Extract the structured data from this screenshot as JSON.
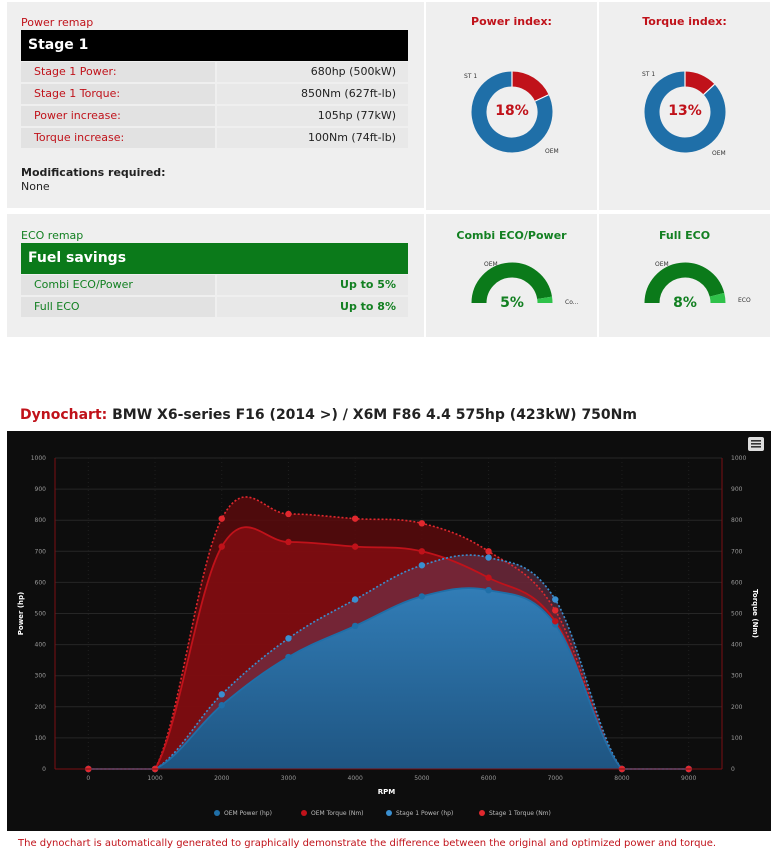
{
  "power_remap": {
    "section_title": "Power remap",
    "stage_title": "Stage 1",
    "rows": [
      {
        "label": "Stage 1 Power:",
        "value": "680hp (500kW)"
      },
      {
        "label": "Stage 1 Torque:",
        "value": "850Nm (627ft-lb)"
      },
      {
        "label": "Power increase:",
        "value": "105hp (77kW)"
      },
      {
        "label": "Torque increase:",
        "value": "100Nm (74ft-lb)"
      }
    ],
    "modifications_label": "Modifications required:",
    "modifications_value": "None"
  },
  "power_index": {
    "title": "Power index:",
    "percent_text": "18%",
    "percent": 18,
    "label_st": "ST 1",
    "label_oem": "OEM"
  },
  "torque_index": {
    "title": "Torque index:",
    "percent_text": "13%",
    "percent": 13,
    "label_st": "ST 1",
    "label_oem": "OEM"
  },
  "eco_remap": {
    "section_title": "ECO remap",
    "bar_title": "Fuel savings",
    "rows": [
      {
        "label": "Combi ECO/Power",
        "value": "Up to 5%"
      },
      {
        "label": "Full ECO",
        "value": "Up to 8%"
      }
    ]
  },
  "combi_eco": {
    "title": "Combi ECO/Power",
    "percent_text": "5%",
    "percent": 5,
    "label_oem": "OEM",
    "label_eco": "Co..."
  },
  "full_eco": {
    "title": "Full ECO",
    "percent_text": "8%",
    "percent": 8,
    "label_oem": "OEM",
    "label_eco": "ECO"
  },
  "dyno": {
    "title_lead": "Dynochart:",
    "title_rest": " BMW X6-series F16 (2014 >) / X6M F86 4.4 575hp (423kW) 750Nm",
    "footer": "The dynochart is automatically generated to graphically demonstrate the difference between the original and optimized power and torque."
  },
  "colors": {
    "red": "#c0121a",
    "blue": "#1f6fa8",
    "green": "#138022"
  },
  "chart_data": {
    "type": "area",
    "xlabel": "RPM",
    "ylabel": "Power (hp)",
    "y2label": "Torque (Nm)",
    "xlim": [
      -500,
      9500
    ],
    "ylim": [
      0,
      1000
    ],
    "x_ticks": [
      0,
      1000,
      2000,
      3000,
      4000,
      5000,
      6000,
      7000,
      8000,
      9000
    ],
    "y_ticks": [
      0,
      100,
      200,
      300,
      400,
      500,
      600,
      700,
      800,
      900,
      1000
    ],
    "grid": true,
    "legend_position": "bottom",
    "series": [
      {
        "name": "OEM Power (hp)",
        "axis": "left",
        "color": "#1f6fa8",
        "x": [
          0,
          1000,
          2000,
          3000,
          4000,
          5000,
          6000,
          7000,
          8000,
          9000
        ],
        "y": [
          0,
          0,
          205,
          360,
          460,
          555,
          575,
          465,
          0,
          0
        ]
      },
      {
        "name": "OEM Torque (Nm)",
        "axis": "right",
        "color": "#c0121a",
        "x": [
          0,
          1000,
          2000,
          3000,
          4000,
          5000,
          6000,
          7000,
          8000,
          9000
        ],
        "y": [
          0,
          0,
          715,
          730,
          715,
          700,
          615,
          475,
          0,
          0
        ]
      },
      {
        "name": "Stage 1 Power (hp)",
        "axis": "left",
        "color": "#3a8fd0",
        "x": [
          0,
          1000,
          2000,
          3000,
          4000,
          5000,
          6000,
          7000,
          8000,
          9000
        ],
        "y": [
          0,
          0,
          240,
          420,
          545,
          655,
          680,
          545,
          0,
          0
        ]
      },
      {
        "name": "Stage 1 Torque (Nm)",
        "axis": "right",
        "color": "#e0282e",
        "x": [
          0,
          1000,
          2000,
          3000,
          4000,
          5000,
          6000,
          7000,
          8000,
          9000
        ],
        "y": [
          0,
          0,
          805,
          820,
          805,
          790,
          700,
          510,
          0,
          0
        ]
      }
    ]
  }
}
